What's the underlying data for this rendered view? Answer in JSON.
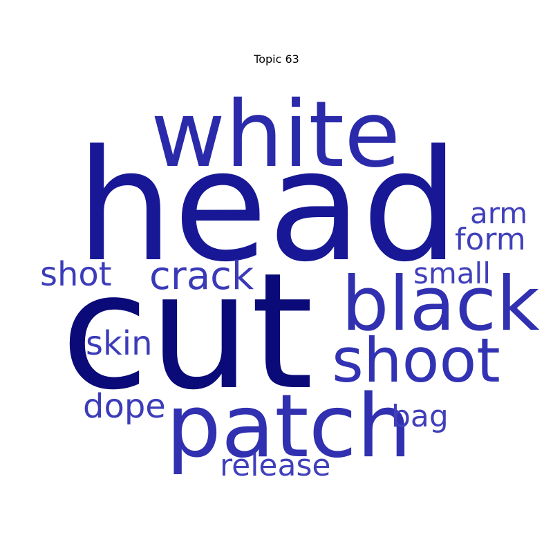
{
  "title": "Topic 63",
  "words": [
    {
      "text": "head",
      "color": "#181896"
    },
    {
      "text": "cut",
      "color": "#0a0a78"
    },
    {
      "text": "white",
      "color": "#2a2aaa"
    },
    {
      "text": "patch",
      "color": "#3030b0"
    },
    {
      "text": "black",
      "color": "#3030b0"
    },
    {
      "text": "shoot",
      "color": "#3232b4"
    },
    {
      "text": "crack",
      "color": "#3a3ab8"
    },
    {
      "text": "shot",
      "color": "#3c3cba"
    },
    {
      "text": "skin",
      "color": "#3c3cba"
    },
    {
      "text": "dope",
      "color": "#3c3cba"
    },
    {
      "text": "arm",
      "color": "#4040bc"
    },
    {
      "text": "form",
      "color": "#4040bc"
    },
    {
      "text": "small",
      "color": "#4040bc"
    },
    {
      "text": "bag",
      "color": "#4040bc"
    },
    {
      "text": "release",
      "color": "#4040bc"
    }
  ]
}
